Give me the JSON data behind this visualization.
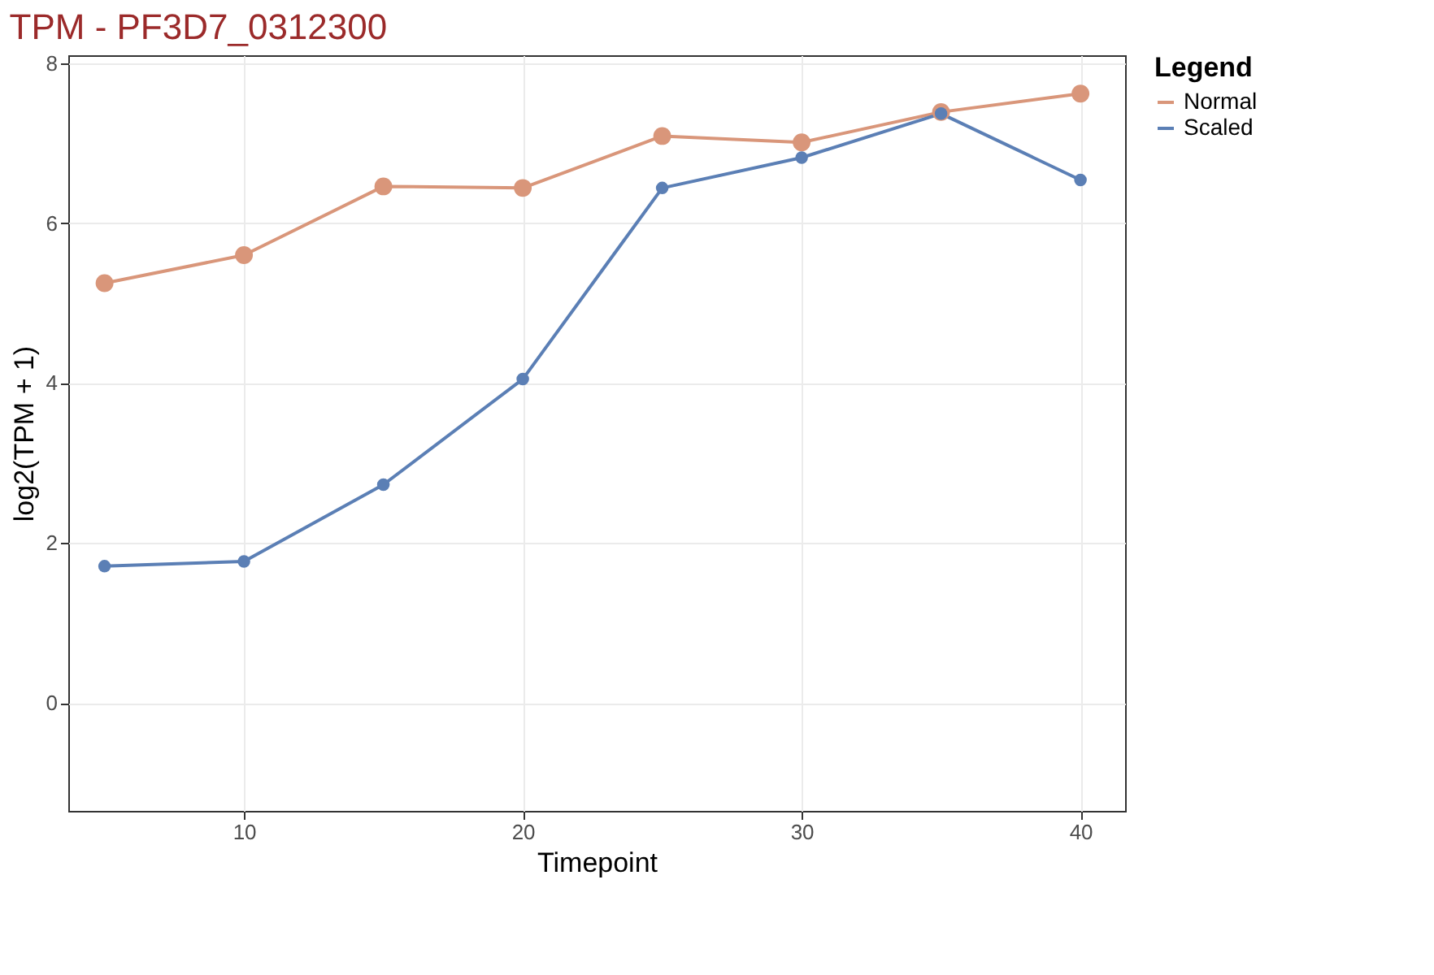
{
  "chart_data": {
    "type": "line",
    "title": "TPM - PF3D7_0312300",
    "xlabel": "Timepoint",
    "ylabel": "log2(TPM + 1)",
    "legend_title": "Legend",
    "x": [
      5,
      10,
      15,
      20,
      25,
      30,
      35,
      40
    ],
    "series": [
      {
        "name": "Normal",
        "color": "#d9967a",
        "values": [
          5.25,
          5.6,
          6.46,
          6.44,
          7.09,
          7.01,
          7.39,
          7.62
        ]
      },
      {
        "name": "Scaled",
        "color": "#5b7fb5",
        "values": [
          1.71,
          1.77,
          2.73,
          4.05,
          6.44,
          6.82,
          7.37,
          6.54
        ]
      }
    ],
    "xlim": [
      3.7,
      41.6
    ],
    "ylim": [
      -1.35,
      8.1
    ],
    "xticks": [
      10,
      20,
      30,
      40
    ],
    "yticks": [
      0,
      2,
      4,
      6,
      8
    ],
    "grid": true,
    "legend": "right",
    "marker": "circle",
    "line_style": "solid"
  }
}
